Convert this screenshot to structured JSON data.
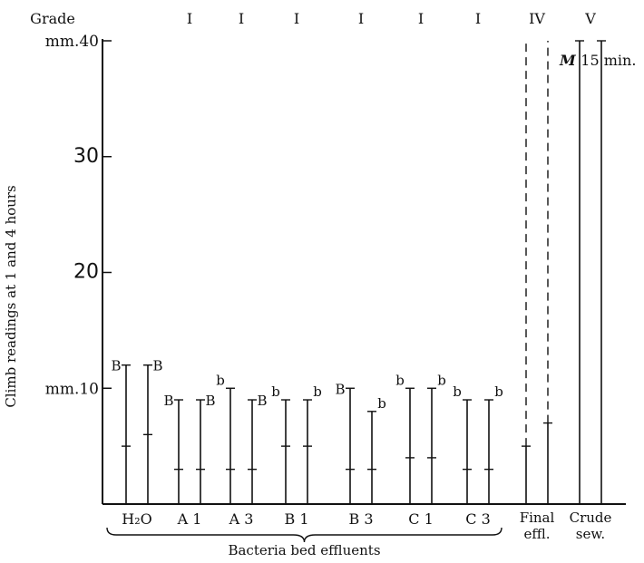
{
  "chart_data": {
    "type": "range-bar",
    "grade_label": "Grade",
    "ylabel": "Climb readings at 1 and 4 hours",
    "ylim": [
      0,
      40
    ],
    "y_ticks": [
      {
        "value": 40,
        "label": "mm.40"
      },
      {
        "value": 30,
        "label": "30"
      },
      {
        "value": 20,
        "label": "20"
      },
      {
        "value": 10,
        "label": "mm.10"
      }
    ],
    "groups": [
      {
        "label": "H₂O",
        "grade": "",
        "bars": [
          {
            "top": 12,
            "mark": 5,
            "letter": "B",
            "style": "solid"
          },
          {
            "top": 12,
            "mark": 6,
            "letter": "B",
            "style": "solid"
          }
        ]
      },
      {
        "label": "A 1",
        "grade": "I",
        "bars": [
          {
            "top": 9,
            "mark": 3,
            "letter": "B",
            "style": "solid"
          },
          {
            "top": 9,
            "mark": 3,
            "letter": "B",
            "style": "solid"
          }
        ]
      },
      {
        "label": "A 3",
        "grade": "I",
        "bars": [
          {
            "top": 10,
            "mark": 3,
            "letter": "b",
            "style": "solid"
          },
          {
            "top": 9,
            "mark": 3,
            "letter": "B",
            "style": "solid"
          }
        ]
      },
      {
        "label": "B 1",
        "grade": "I",
        "bars": [
          {
            "top": 9,
            "mark": 5,
            "letter": "b",
            "style": "solid"
          },
          {
            "top": 9,
            "mark": 5,
            "letter": "b",
            "style": "solid"
          }
        ]
      },
      {
        "label": "B 3",
        "grade": "I",
        "bars": [
          {
            "top": 10,
            "mark": 3,
            "letter": "B",
            "style": "solid"
          },
          {
            "top": 8,
            "mark": 3,
            "letter": "b",
            "style": "solid"
          }
        ]
      },
      {
        "label": "C 1",
        "grade": "I",
        "bars": [
          {
            "top": 10,
            "mark": 4,
            "letter": "b",
            "style": "solid"
          },
          {
            "top": 10,
            "mark": 4,
            "letter": "b",
            "style": "solid"
          }
        ]
      },
      {
        "label": "C 3",
        "grade": "I",
        "bars": [
          {
            "top": 9,
            "mark": 3,
            "letter": "b",
            "style": "solid"
          },
          {
            "top": 9,
            "mark": 3,
            "letter": "b",
            "style": "solid"
          }
        ]
      },
      {
        "label": "Final effl.",
        "grade": "IV",
        "bars": [
          {
            "top": 40,
            "solid_top": 5,
            "letter": "",
            "style": "dashed"
          },
          {
            "top": 40,
            "solid_top": 7,
            "letter": "",
            "style": "dashed"
          }
        ]
      },
      {
        "label": "Crude sew.",
        "grade": "V",
        "bars": [
          {
            "top": 40,
            "letter": "",
            "style": "solid"
          },
          {
            "top": 40,
            "letter": "",
            "style": "solid"
          }
        ]
      }
    ],
    "annotation": {
      "italic": "M",
      "text": "15 min."
    },
    "bracket_label": "Bacteria bed effluents"
  }
}
